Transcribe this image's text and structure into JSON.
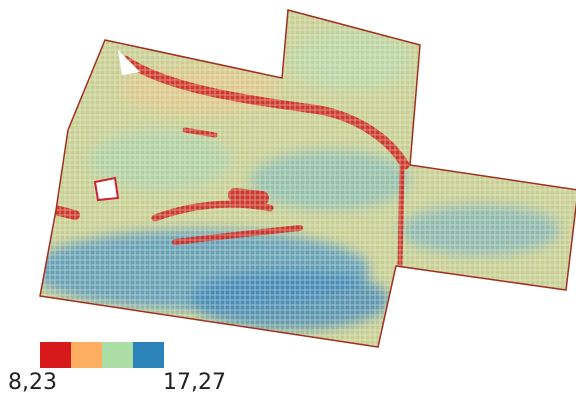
{
  "legend": {
    "colors": [
      "#d7191c",
      "#fdae61",
      "#abdda4",
      "#2b83ba"
    ],
    "min_label": "8,23",
    "max_label": "17,27"
  }
}
